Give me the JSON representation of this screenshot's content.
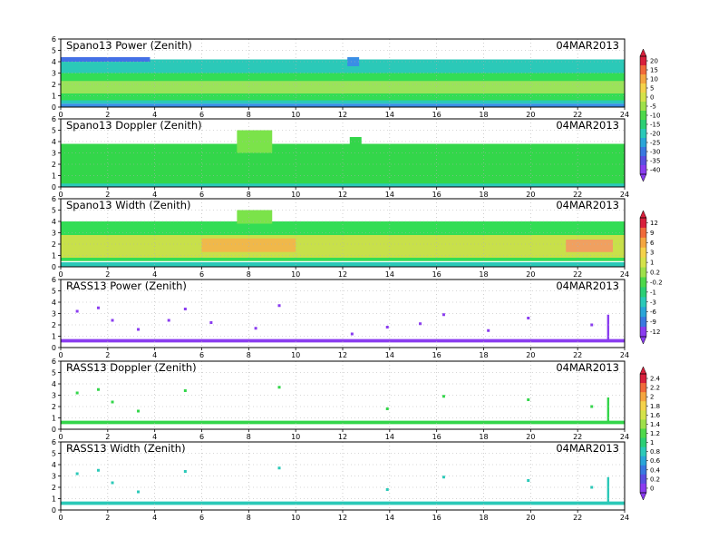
{
  "chart_data": {
    "type": "heatmap",
    "x_ticks": [
      0,
      2,
      4,
      6,
      8,
      10,
      12,
      14,
      16,
      18,
      20,
      22,
      24
    ],
    "y_ticks": [
      0,
      1,
      2,
      3,
      4,
      5,
      6
    ],
    "xlim": [
      0,
      24
    ],
    "ylim": [
      0,
      6
    ],
    "grid": true,
    "panels": [
      {
        "title": "Spano13 Power (Zenith)",
        "date": "04MAR2013",
        "ylim": [
          0,
          6
        ],
        "colorbar": "cb_spano",
        "layers": [
          {
            "x": [
              0,
              24
            ],
            "y": [
              0.3,
              4.2
            ],
            "colour": "#2bc9b8"
          },
          {
            "x": [
              0,
              24
            ],
            "y": [
              0.6,
              3.0
            ],
            "colour": "#33dd55"
          },
          {
            "x": [
              0,
              24
            ],
            "y": [
              1.2,
              2.3
            ],
            "colour": "#9be35a"
          },
          {
            "x": [
              0,
              24
            ],
            "y": [
              0.0,
              0.3
            ],
            "colour": "#3a8ee6"
          },
          {
            "x": [
              0,
              3.8
            ],
            "y": [
              4.0,
              4.4
            ],
            "colour": "#4470e6"
          },
          {
            "x": [
              12.2,
              12.7
            ],
            "y": [
              3.6,
              4.4
            ],
            "colour": "#3a8ee6"
          }
        ]
      },
      {
        "title": "Spano13 Doppler (Zenith)",
        "date": "04MAR2013",
        "ylim": [
          0,
          6
        ],
        "colorbar": "cb_spano",
        "layers": [
          {
            "x": [
              0,
              24
            ],
            "y": [
              0.1,
              3.8
            ],
            "colour": "#33d64a"
          },
          {
            "x": [
              0,
              24
            ],
            "y": [
              0.0,
              0.3
            ],
            "colour": "#2bc9b8"
          },
          {
            "x": [
              7.5,
              9.0
            ],
            "y": [
              3.0,
              5.0
            ],
            "colour": "#7be34a"
          },
          {
            "x": [
              12.3,
              12.8
            ],
            "y": [
              3.8,
              4.4
            ],
            "colour": "#33d64a"
          }
        ]
      },
      {
        "title": "Spano13 Width (Zenith)",
        "date": "04MAR2013",
        "ylim": [
          0,
          6
        ],
        "colorbar": "cb_width",
        "layers": [
          {
            "x": [
              0,
              24
            ],
            "y": [
              0.5,
              4.0
            ],
            "colour": "#33dd55"
          },
          {
            "x": [
              0,
              24
            ],
            "y": [
              0.8,
              2.8
            ],
            "colour": "#c8e04a"
          },
          {
            "x": [
              6.0,
              10.0
            ],
            "y": [
              1.3,
              2.5
            ],
            "colour": "#f0b84a"
          },
          {
            "x": [
              21.5,
              23.5
            ],
            "y": [
              1.3,
              2.4
            ],
            "colour": "#f0a060"
          },
          {
            "x": [
              0,
              24
            ],
            "y": [
              0.0,
              0.4
            ],
            "colour": "#2bc9b8"
          },
          {
            "x": [
              7.5,
              9.0
            ],
            "y": [
              3.8,
              5.0
            ],
            "colour": "#7be34a"
          }
        ]
      },
      {
        "title": "RASS13 Power (Zenith)",
        "date": "04MAR2013",
        "ylim": [
          0,
          6
        ],
        "colorbar": "cb_rass",
        "layers": [
          {
            "x": [
              0,
              24
            ],
            "y": [
              0.45,
              0.75
            ],
            "colour": "#8a3cf0"
          }
        ],
        "points": [
          [
            0.7,
            3.2
          ],
          [
            1.6,
            3.5
          ],
          [
            2.2,
            2.4
          ],
          [
            3.3,
            1.6
          ],
          [
            4.6,
            2.4
          ],
          [
            5.3,
            3.4
          ],
          [
            6.4,
            2.2
          ],
          [
            8.3,
            1.7
          ],
          [
            9.3,
            3.7
          ],
          [
            12.4,
            1.2
          ],
          [
            13.9,
            1.8
          ],
          [
            15.3,
            2.1
          ],
          [
            16.3,
            2.9
          ],
          [
            18.2,
            1.5
          ],
          [
            19.9,
            2.6
          ],
          [
            22.6,
            2.0
          ]
        ],
        "spike": {
          "x": 23.3,
          "y": [
            0.7,
            2.9
          ]
        }
      },
      {
        "title": "RASS13 Doppler (Zenith)",
        "date": "04MAR2013",
        "ylim": [
          0,
          6
        ],
        "colorbar": "cb_rass",
        "layers": [
          {
            "x": [
              0,
              24
            ],
            "y": [
              0.45,
              0.75
            ],
            "colour": "#33d64a"
          }
        ],
        "points": [
          [
            0.7,
            3.2
          ],
          [
            1.6,
            3.5
          ],
          [
            2.2,
            2.4
          ],
          [
            3.3,
            1.6
          ],
          [
            5.3,
            3.4
          ],
          [
            9.3,
            3.7
          ],
          [
            13.9,
            1.8
          ],
          [
            16.3,
            2.9
          ],
          [
            19.9,
            2.6
          ],
          [
            22.6,
            2.0
          ]
        ],
        "spike": {
          "x": 23.3,
          "y": [
            0.7,
            2.8
          ]
        }
      },
      {
        "title": "RASS13 Width (Zenith)",
        "date": "04MAR2013",
        "ylim": [
          0,
          6
        ],
        "colorbar": "cb_rass",
        "layers": [
          {
            "x": [
              0,
              24
            ],
            "y": [
              0.45,
              0.75
            ],
            "colour": "#2bc9b8"
          }
        ],
        "points": [
          [
            0.7,
            3.2
          ],
          [
            1.6,
            3.5
          ],
          [
            2.2,
            2.4
          ],
          [
            3.3,
            1.6
          ],
          [
            5.3,
            3.4
          ],
          [
            9.3,
            3.7
          ],
          [
            13.9,
            1.8
          ],
          [
            16.3,
            2.9
          ],
          [
            19.9,
            2.6
          ],
          [
            22.6,
            2.0
          ]
        ],
        "spike": {
          "x": 23.3,
          "y": [
            0.7,
            2.9
          ]
        }
      }
    ],
    "colorbars": {
      "cb_spano": {
        "labels": [
          "20",
          "15",
          "10",
          "5",
          "0",
          "-5",
          "-10",
          "-15",
          "-20",
          "-25",
          "-30",
          "-35",
          "-40"
        ],
        "colors": [
          "#d8203c",
          "#f06a3a",
          "#f4a640",
          "#f4d24a",
          "#d4e24a",
          "#9ee04a",
          "#4ed84a",
          "#2ccf74",
          "#2bc9b8",
          "#2aa5d8",
          "#3a78e0",
          "#5a4fe0",
          "#8a3cf0"
        ]
      },
      "cb_width": {
        "labels": [
          "12",
          "9",
          "6",
          "3",
          "1",
          "0.2",
          "-0.2",
          "-1",
          "-3",
          "-6",
          "-9",
          "-12"
        ],
        "colors": [
          "#d8203c",
          "#f06a3a",
          "#f4a640",
          "#f4d24a",
          "#d4e24a",
          "#9ee04a",
          "#4ed84a",
          "#2ccf74",
          "#2bc9b8",
          "#2aa5d8",
          "#3a78e0",
          "#8a3cf0"
        ]
      },
      "cb_rass": {
        "labels": [
          "2.4",
          "2.2",
          "2",
          "1.8",
          "1.6",
          "1.4",
          "1.2",
          "1",
          "0.8",
          "0.6",
          "0.4",
          "0.2",
          "0"
        ],
        "colors": [
          "#d8203c",
          "#f06a3a",
          "#f4a640",
          "#f4d24a",
          "#d4e24a",
          "#9ee04a",
          "#4ed84a",
          "#2ccf74",
          "#2bc9b8",
          "#2aa5d8",
          "#3a78e0",
          "#5a4fe0",
          "#8a3cf0"
        ]
      }
    }
  }
}
